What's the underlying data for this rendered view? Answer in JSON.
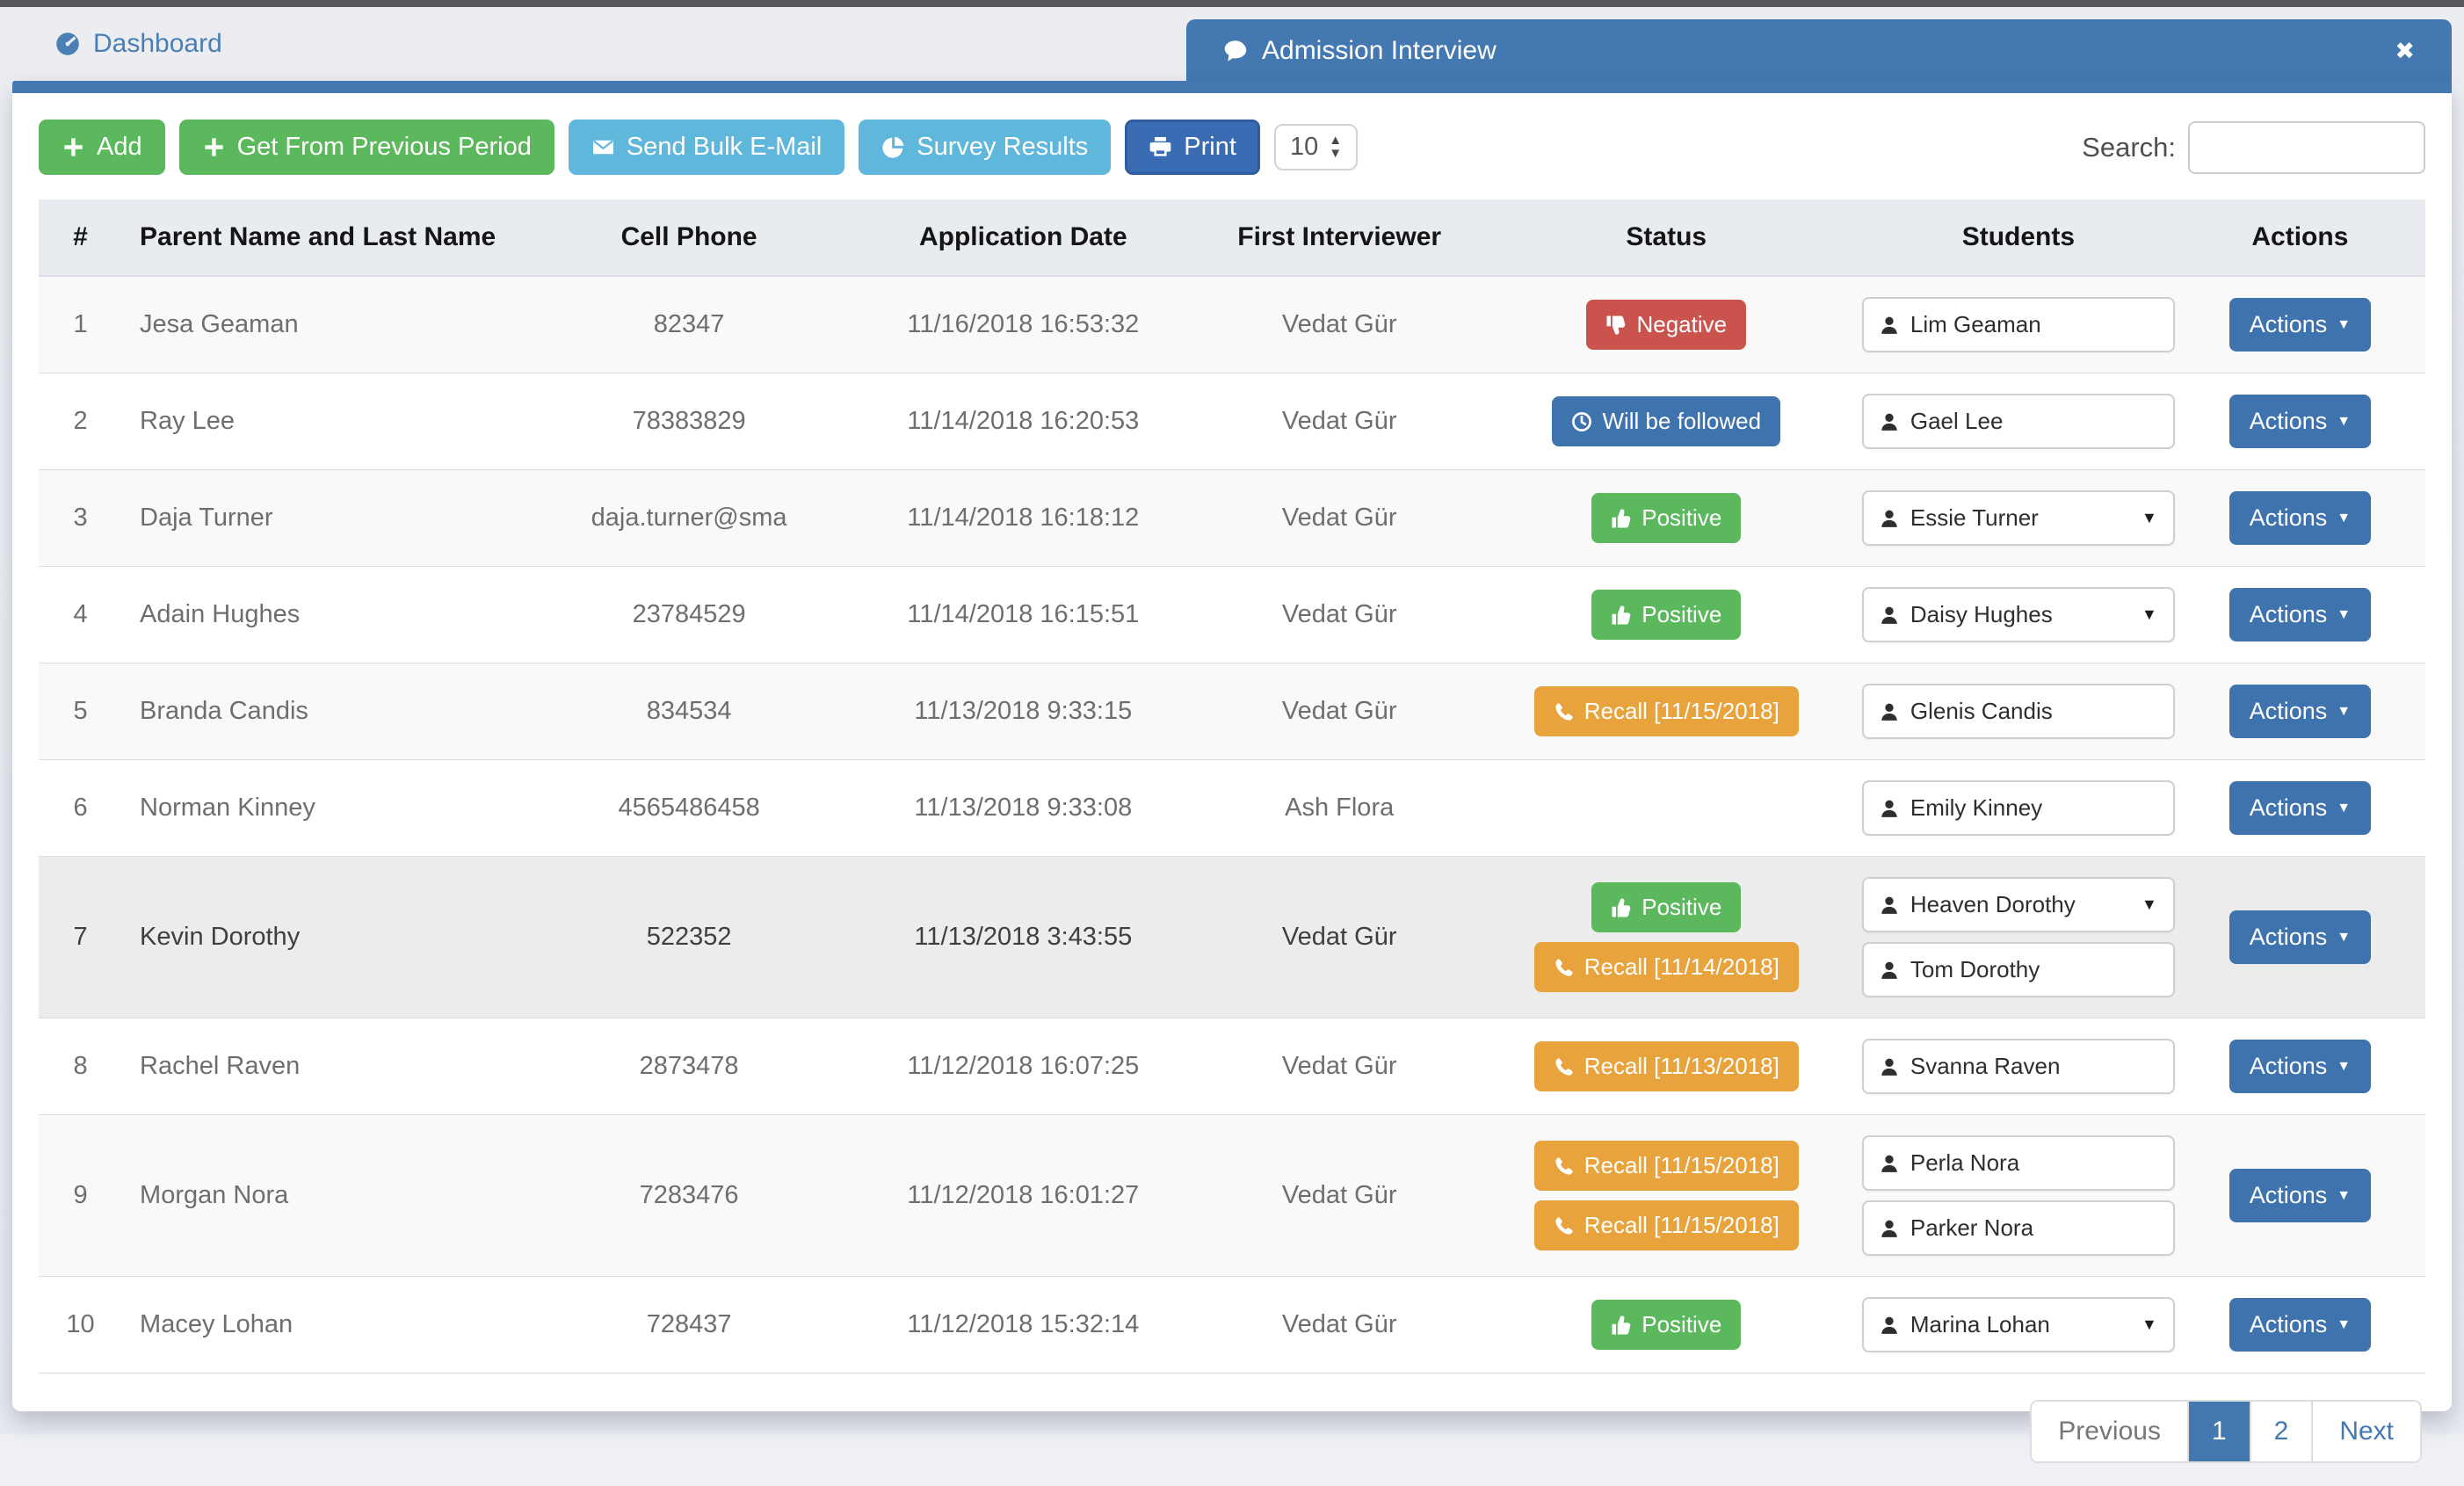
{
  "tabs": {
    "dashboard": "Dashboard",
    "active": "Admission Interview"
  },
  "toolbar": {
    "add": "Add",
    "get_previous": "Get From Previous Period",
    "send_bulk": "Send Bulk E-Mail",
    "survey": "Survey Results",
    "print": "Print",
    "page_size": "10",
    "search_label": "Search:",
    "search_value": ""
  },
  "icons": {
    "negative": "thumbs-down-icon",
    "positive": "thumbs-up-icon",
    "followed": "clock-icon",
    "recall": "phone-icon",
    "student": "person-icon",
    "close": "✖",
    "caret": "▼",
    "spinner_up": "▲",
    "spinner_down": "▼"
  },
  "table": {
    "columns": [
      "#",
      "Parent Name and Last Name",
      "Cell Phone",
      "Application Date",
      "First Interviewer",
      "Status",
      "Students",
      "Actions"
    ],
    "actions_label": "Actions",
    "rows": [
      {
        "num": "1",
        "parent": "Jesa Geaman",
        "phone": "82347",
        "date": "11/16/2018 16:53:32",
        "interviewer": "Vedat Gür",
        "statuses": [
          {
            "type": "negative",
            "label": "Negative"
          }
        ],
        "students": [
          {
            "name": "Lim Geaman",
            "dropdown": false
          }
        ]
      },
      {
        "num": "2",
        "parent": "Ray Lee",
        "phone": "78383829",
        "date": "11/14/2018 16:20:53",
        "interviewer": "Vedat Gür",
        "statuses": [
          {
            "type": "followed",
            "label": "Will be followed"
          }
        ],
        "students": [
          {
            "name": "Gael Lee",
            "dropdown": false
          }
        ]
      },
      {
        "num": "3",
        "parent": "Daja Turner",
        "phone": "daja.turner@sma",
        "date": "11/14/2018 16:18:12",
        "interviewer": "Vedat Gür",
        "statuses": [
          {
            "type": "positive",
            "label": "Positive"
          }
        ],
        "students": [
          {
            "name": "Essie Turner",
            "dropdown": true
          }
        ]
      },
      {
        "num": "4",
        "parent": "Adain Hughes",
        "phone": "23784529",
        "date": "11/14/2018 16:15:51",
        "interviewer": "Vedat Gür",
        "statuses": [
          {
            "type": "positive",
            "label": "Positive"
          }
        ],
        "students": [
          {
            "name": "Daisy Hughes",
            "dropdown": true
          }
        ]
      },
      {
        "num": "5",
        "parent": "Branda Candis",
        "phone": "834534",
        "date": "11/13/2018 9:33:15",
        "interviewer": "Vedat Gür",
        "statuses": [
          {
            "type": "recall",
            "label": "Recall [11/15/2018]"
          }
        ],
        "students": [
          {
            "name": "Glenis Candis",
            "dropdown": false
          }
        ]
      },
      {
        "num": "6",
        "parent": "Norman Kinney",
        "phone": "4565486458",
        "date": "11/13/2018 9:33:08",
        "interviewer": "Ash Flora",
        "statuses": [],
        "students": [
          {
            "name": "Emily Kinney",
            "dropdown": false
          }
        ]
      },
      {
        "num": "7",
        "parent": "Kevin Dorothy",
        "phone": "522352",
        "date": "11/13/2018 3:43:55",
        "interviewer": "Vedat Gür",
        "highlight": true,
        "statuses": [
          {
            "type": "positive",
            "label": "Positive"
          },
          {
            "type": "recall",
            "label": "Recall [11/14/2018]"
          }
        ],
        "students": [
          {
            "name": "Heaven Dorothy",
            "dropdown": true
          },
          {
            "name": "Tom Dorothy",
            "dropdown": false
          }
        ]
      },
      {
        "num": "8",
        "parent": "Rachel Raven",
        "phone": "2873478",
        "date": "11/12/2018 16:07:25",
        "interviewer": "Vedat Gür",
        "statuses": [
          {
            "type": "recall",
            "label": "Recall [11/13/2018]"
          }
        ],
        "students": [
          {
            "name": "Svanna Raven",
            "dropdown": false
          }
        ]
      },
      {
        "num": "9",
        "parent": "Morgan Nora",
        "phone": "7283476",
        "date": "11/12/2018 16:01:27",
        "interviewer": "Vedat Gür",
        "statuses": [
          {
            "type": "recall",
            "label": "Recall [11/15/2018]"
          },
          {
            "type": "recall",
            "label": "Recall [11/15/2018]"
          }
        ],
        "students": [
          {
            "name": "Perla Nora",
            "dropdown": false
          },
          {
            "name": "Parker Nora",
            "dropdown": false
          }
        ]
      },
      {
        "num": "10",
        "parent": "Macey Lohan",
        "phone": "728437",
        "date": "11/12/2018 15:32:14",
        "interviewer": "Vedat Gür",
        "statuses": [
          {
            "type": "positive",
            "label": "Positive"
          }
        ],
        "students": [
          {
            "name": "Marina Lohan",
            "dropdown": true
          }
        ]
      }
    ]
  },
  "pagination": {
    "previous": "Previous",
    "pages": [
      "1",
      "2"
    ],
    "active": "1",
    "next": "Next"
  },
  "colors": {
    "tab_blue": "#4478b1",
    "primary": "#3f73ad",
    "print_blue": "#3a6cb4",
    "success": "#5cb85c",
    "info": "#5fb7db",
    "danger": "#cb534e",
    "warning": "#e8a33d",
    "header_bg": "#e8ebef",
    "stripe": "#f9f9f9",
    "highlight": "#ececec"
  }
}
